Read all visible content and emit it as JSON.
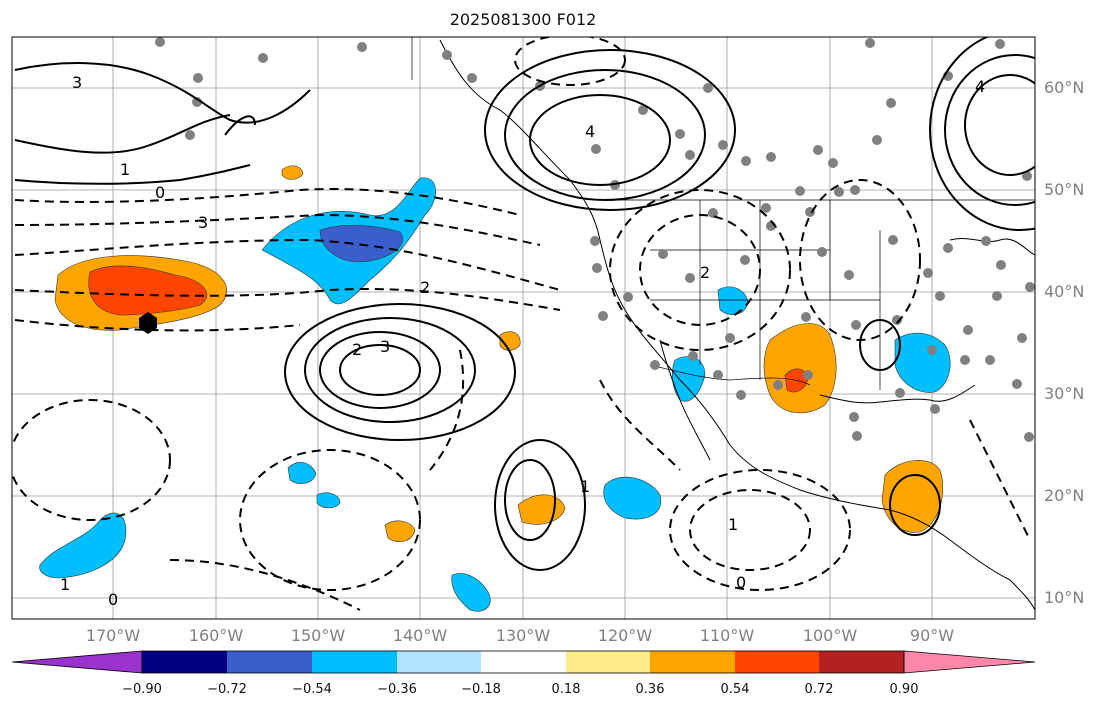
{
  "title": "2025081300 F012",
  "lat_labels": [
    "60°N",
    "50°N",
    "40°N",
    "30°N",
    "20°N",
    "10°N"
  ],
  "lon_labels": [
    "170°W",
    "160°W",
    "150°W",
    "140°W",
    "130°W",
    "120°W",
    "110°W",
    "100°W",
    "90°W"
  ],
  "colorbar": {
    "colors": [
      "#9933cc",
      "#000080",
      "#3a5fcd",
      "#00bfff",
      "#afe3ff",
      "#ffffff",
      "#ffec8b",
      "#ffa500",
      "#ff4500",
      "#b22222",
      "#ff88aa"
    ],
    "tick_labels": [
      "−0.90",
      "−0.72",
      "−0.54",
      "−0.36",
      "−0.18",
      "0.18",
      "0.36",
      "0.54",
      "0.72",
      "0.90"
    ]
  },
  "map": {
    "extent_lon": [
      -180,
      -80
    ],
    "extent_lat": [
      7,
      64
    ],
    "grid": true,
    "contour_labels": [
      "4",
      "3",
      "2",
      "1",
      "0",
      "-1",
      "-2",
      "-3"
    ],
    "fill_colors": {
      "blue": "#00bfff",
      "dark_blue": "#3a5fcd",
      "orange": "#ffa500",
      "red": "#ff4500"
    }
  }
}
